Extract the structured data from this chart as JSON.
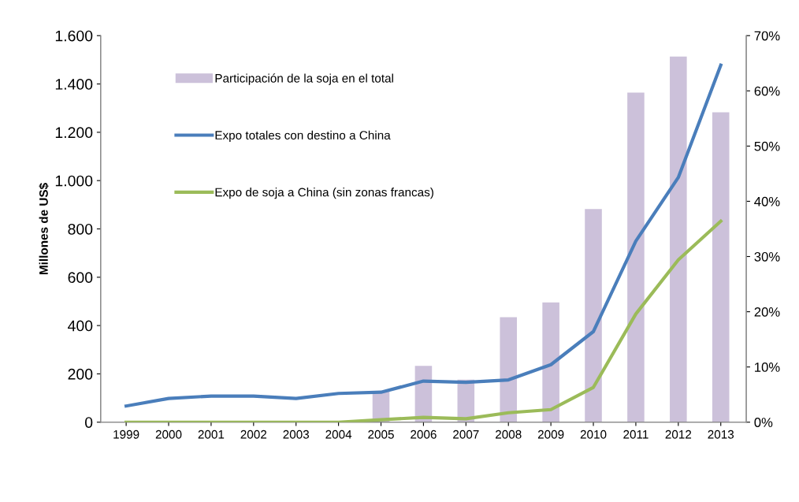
{
  "chart_data": {
    "type": "line",
    "ylabel": "Millones de US$",
    "categories": [
      "1999",
      "2000",
      "2001",
      "2002",
      "2003",
      "2004",
      "2005",
      "2006",
      "2007",
      "2008",
      "2009",
      "2010",
      "2011",
      "2012",
      "2013"
    ],
    "series": [
      {
        "name": "Participación de la soja en el total",
        "type": "bar",
        "axis": "y2",
        "color": "#ccc1da",
        "values": [
          null,
          null,
          null,
          null,
          null,
          null,
          5.6,
          10.2,
          7.7,
          19.0,
          21.7,
          38.6,
          59.7,
          66.2,
          56.1
        ]
      },
      {
        "name": "Expo totales con destino a China",
        "color": "#4a7ebb",
        "values": [
          67,
          98,
          108,
          108,
          98,
          119,
          124,
          170,
          165,
          175,
          238,
          375,
          750,
          1013,
          1478
        ]
      },
      {
        "name": "Expo de soja a China (sin zonas francas)",
        "color": "#9bbb59",
        "values": [
          0,
          0,
          0,
          0,
          0,
          0,
          10,
          20,
          14,
          39,
          52,
          144,
          448,
          672,
          832
        ]
      }
    ],
    "ylim": [
      0,
      1600
    ],
    "yticks": [
      0,
      200,
      400,
      600,
      800,
      {
        "value": 1000,
        "label": "1.000"
      },
      {
        "value": 1200,
        "label": "1.200"
      },
      {
        "value": 1400,
        "label": "1.400"
      },
      {
        "value": 1600,
        "label": "1.600"
      }
    ],
    "y2lim": [
      0,
      70
    ],
    "y2ticks": [
      {
        "value": 0,
        "label": "0%"
      },
      {
        "value": 10,
        "label": "10%"
      },
      {
        "value": 20,
        "label": "20%"
      },
      {
        "value": 30,
        "label": "30%"
      },
      {
        "value": 40,
        "label": "40%"
      },
      {
        "value": 50,
        "label": "50%"
      },
      {
        "value": 60,
        "label": "60%"
      },
      {
        "value": 70,
        "label": "70%"
      }
    ],
    "legend": "top left",
    "grid": false,
    "marker": "none",
    "line_style": "solid"
  }
}
